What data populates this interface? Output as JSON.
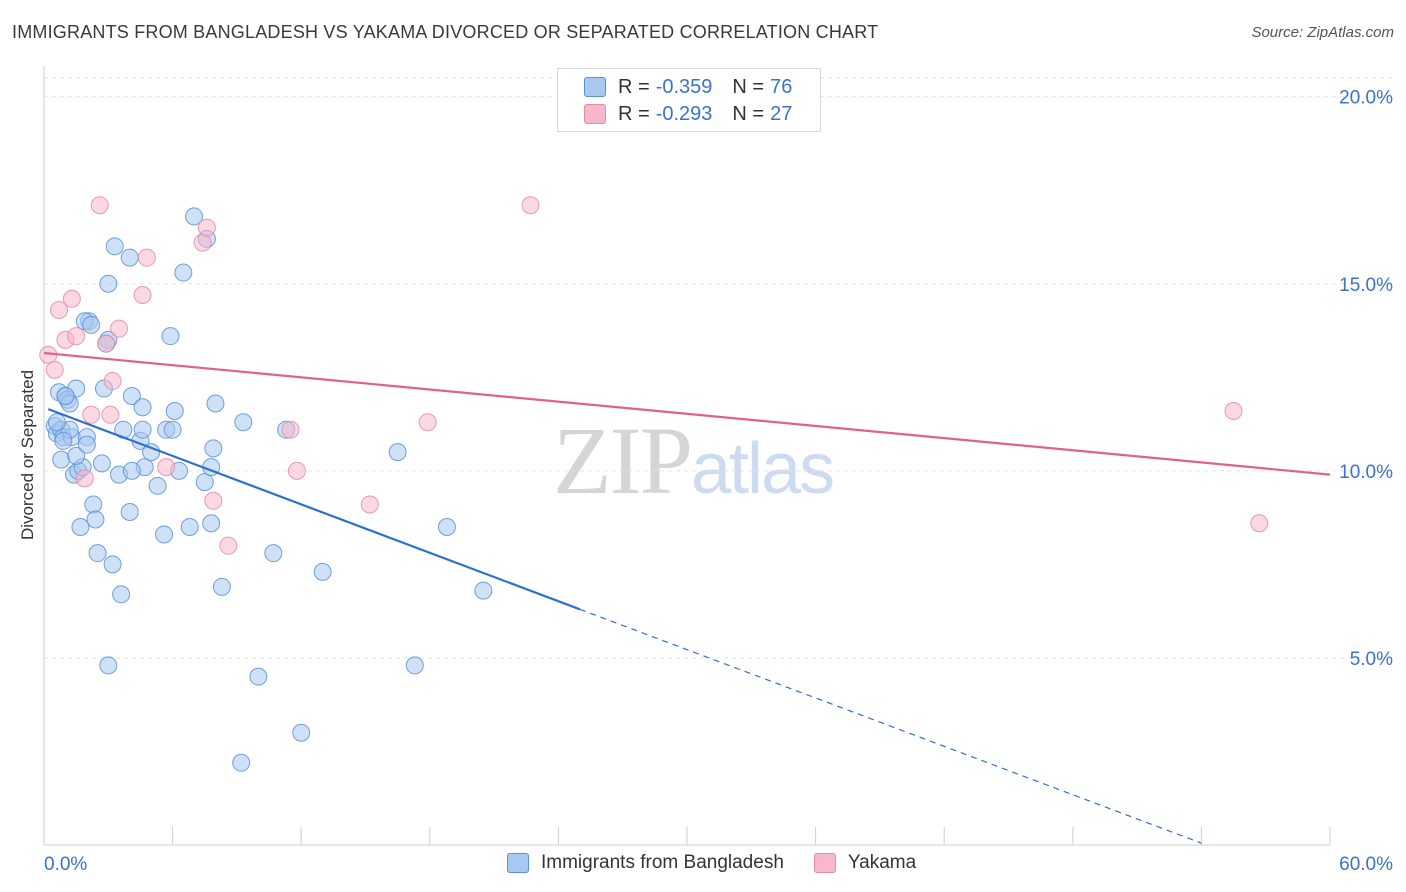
{
  "title": "IMMIGRANTS FROM BANGLADESH VS YAKAMA DIVORCED OR SEPARATED CORRELATION CHART",
  "source": "Source: ZipAtlas.com",
  "watermark": {
    "zip": "ZIP",
    "atlas": "atlas"
  },
  "legend_top": [
    {
      "r_label": "R =",
      "r_value": "-0.359",
      "n_label": "N =",
      "n_value": "76",
      "color": "#a8c8f0"
    },
    {
      "r_label": "R =",
      "r_value": "-0.293",
      "n_label": "N =",
      "n_value": "27",
      "color": "#f7b8cb"
    }
  ],
  "legend_bottom": [
    {
      "label": "Immigrants from Bangladesh",
      "color": "#a8c8f0"
    },
    {
      "label": "Yakama",
      "color": "#f7b8cb"
    }
  ],
  "chart_data": {
    "type": "scatter",
    "title": "IMMIGRANTS FROM BANGLADESH VS YAKAMA DIVORCED OR SEPARATED CORRELATION CHART",
    "xlabel": "",
    "ylabel": "Divorced or Separated",
    "xlim": [
      0,
      60
    ],
    "ylim": [
      0,
      20.5
    ],
    "x_tick_labels": [
      "0.0%",
      "60.0%"
    ],
    "y_ticks": [
      5,
      10,
      15,
      20
    ],
    "y_tick_labels": [
      "5.0%",
      "10.0%",
      "15.0%",
      "20.0%"
    ],
    "grid": true,
    "legend_position": "top-center",
    "colors": {
      "blue_fill": "#a8c8f0",
      "blue_stroke": "#5b8fd6",
      "blue_line": "#2f6fd0",
      "pink_fill": "#f7b8cb",
      "pink_stroke": "#e58aa8",
      "pink_line": "#e0628a",
      "tick_text": "#3a73c9"
    },
    "series": [
      {
        "name": "Immigrants from Bangladesh",
        "points": [
          [
            0.5,
            11.2
          ],
          [
            0.6,
            11.0
          ],
          [
            0.8,
            11.1
          ],
          [
            0.9,
            10.9
          ],
          [
            0.7,
            12.1
          ],
          [
            1.0,
            12.0
          ],
          [
            1.1,
            11.9
          ],
          [
            1.2,
            11.8
          ],
          [
            0.8,
            10.3
          ],
          [
            1.3,
            10.9
          ],
          [
            1.5,
            12.2
          ],
          [
            1.4,
            9.9
          ],
          [
            1.6,
            10.0
          ],
          [
            1.8,
            10.1
          ],
          [
            1.5,
            10.4
          ],
          [
            2.0,
            10.9
          ],
          [
            2.0,
            10.7
          ],
          [
            2.1,
            14.0
          ],
          [
            1.9,
            14.0
          ],
          [
            2.2,
            13.9
          ],
          [
            2.3,
            9.1
          ],
          [
            2.4,
            8.7
          ],
          [
            1.7,
            8.5
          ],
          [
            2.5,
            7.8
          ],
          [
            2.7,
            10.2
          ],
          [
            2.8,
            12.2
          ],
          [
            3.0,
            13.5
          ],
          [
            3.2,
            7.5
          ],
          [
            3.0,
            15.0
          ],
          [
            3.3,
            16.0
          ],
          [
            3.5,
            9.9
          ],
          [
            3.6,
            6.7
          ],
          [
            3.7,
            11.1
          ],
          [
            4.0,
            15.7
          ],
          [
            4.0,
            8.9
          ],
          [
            4.1,
            12.0
          ],
          [
            4.5,
            10.8
          ],
          [
            4.6,
            11.1
          ],
          [
            4.6,
            11.7
          ],
          [
            4.7,
            10.1
          ],
          [
            5.0,
            10.5
          ],
          [
            5.3,
            9.6
          ],
          [
            5.6,
            8.3
          ],
          [
            5.7,
            11.1
          ],
          [
            5.9,
            13.6
          ],
          [
            6.0,
            11.1
          ],
          [
            6.1,
            11.6
          ],
          [
            6.3,
            10.0
          ],
          [
            6.5,
            15.3
          ],
          [
            6.8,
            8.5
          ],
          [
            7.0,
            16.8
          ],
          [
            7.5,
            9.7
          ],
          [
            7.6,
            16.2
          ],
          [
            7.8,
            10.1
          ],
          [
            7.8,
            8.6
          ],
          [
            7.9,
            10.6
          ],
          [
            8.0,
            11.8
          ],
          [
            8.3,
            6.9
          ],
          [
            9.3,
            11.3
          ],
          [
            10.0,
            4.5
          ],
          [
            10.7,
            7.8
          ],
          [
            11.3,
            11.1
          ],
          [
            12.0,
            3.0
          ],
          [
            13.0,
            7.3
          ],
          [
            16.5,
            10.5
          ],
          [
            17.3,
            4.8
          ],
          [
            18.8,
            8.5
          ],
          [
            20.5,
            6.8
          ],
          [
            3.0,
            4.8
          ],
          [
            9.2,
            2.2
          ],
          [
            1.2,
            11.1
          ],
          [
            0.9,
            10.8
          ],
          [
            2.9,
            13.4
          ],
          [
            4.1,
            10.0
          ],
          [
            1.0,
            12.0
          ],
          [
            0.6,
            11.3
          ]
        ],
        "trend": {
          "x0": 0.2,
          "y0": 11.65,
          "x1": 25.0,
          "y1": 6.3,
          "dash_to_x": 54,
          "dash_to_y": 0.05
        }
      },
      {
        "name": "Yakama",
        "points": [
          [
            0.2,
            13.1
          ],
          [
            0.5,
            12.7
          ],
          [
            0.7,
            14.3
          ],
          [
            1.0,
            13.5
          ],
          [
            1.3,
            14.6
          ],
          [
            1.5,
            13.6
          ],
          [
            1.9,
            9.8
          ],
          [
            2.2,
            11.5
          ],
          [
            2.6,
            17.1
          ],
          [
            2.9,
            13.4
          ],
          [
            3.1,
            11.5
          ],
          [
            3.2,
            12.4
          ],
          [
            3.5,
            13.8
          ],
          [
            4.6,
            14.7
          ],
          [
            4.8,
            15.7
          ],
          [
            5.7,
            10.1
          ],
          [
            7.4,
            16.1
          ],
          [
            7.6,
            16.5
          ],
          [
            7.9,
            9.2
          ],
          [
            8.6,
            8.0
          ],
          [
            11.5,
            11.1
          ],
          [
            11.8,
            10.0
          ],
          [
            15.2,
            9.1
          ],
          [
            17.9,
            11.3
          ],
          [
            22.7,
            17.1
          ],
          [
            55.5,
            11.6
          ],
          [
            56.7,
            8.6
          ]
        ],
        "trend": {
          "x0": 0.0,
          "y0": 13.15,
          "x1": 60.0,
          "y1": 9.9
        }
      }
    ]
  }
}
